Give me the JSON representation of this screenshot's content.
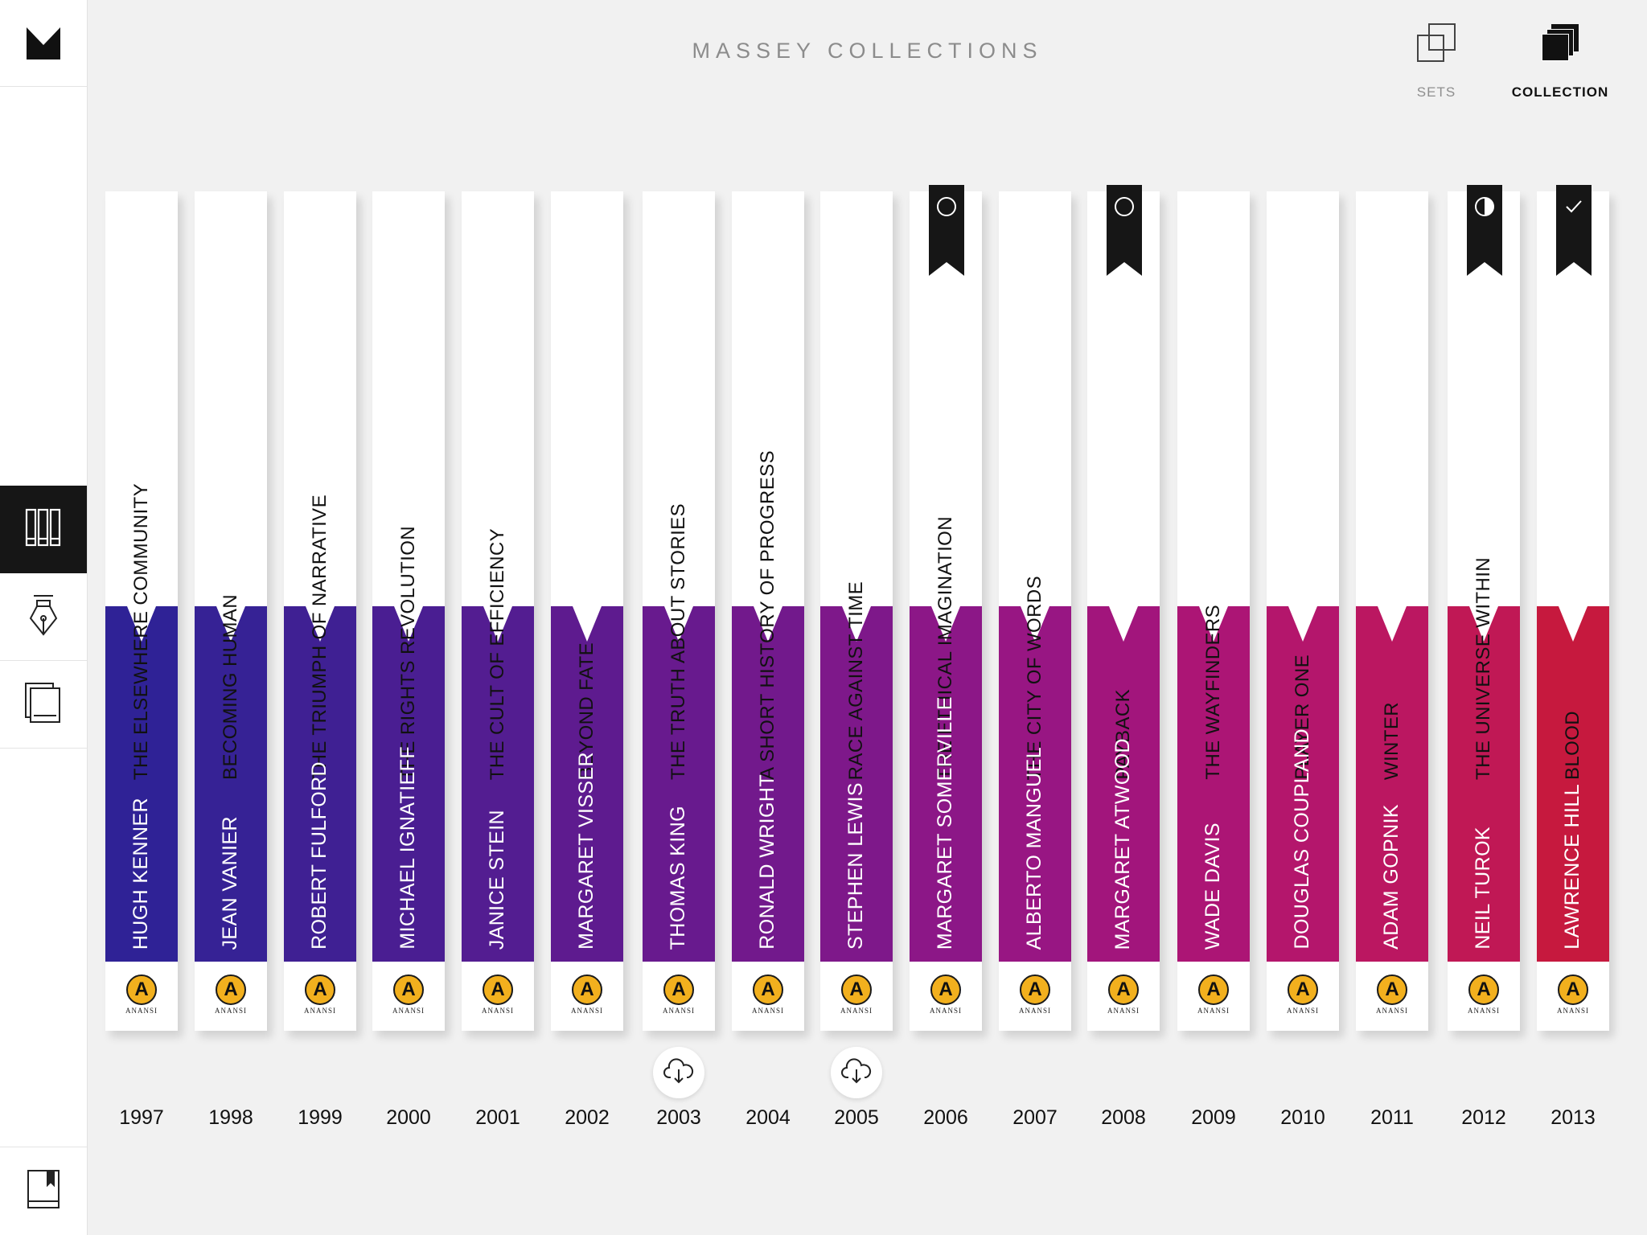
{
  "header": {
    "title": "MASSEY COLLECTIONS"
  },
  "topnav": [
    {
      "label": "SETS",
      "icon": "sets-icon",
      "active": false
    },
    {
      "label": "COLLECTION",
      "icon": "collection-icon",
      "active": true
    }
  ],
  "sidebar": {
    "logo": "massey-logo",
    "items": [
      {
        "icon": "library-icon",
        "active": true
      },
      {
        "icon": "pen-nib-icon",
        "active": false
      },
      {
        "icon": "cards-icon",
        "active": false
      }
    ],
    "bottom": "bookmark-book-icon"
  },
  "publisher": {
    "letter": "A",
    "name": "ANANSI",
    "color": "#f2b01e"
  },
  "books": [
    {
      "title": "THE ELSEWHERE COMMUNITY",
      "author": "HUGH KENNER",
      "year": "1997",
      "color": "#2f2296",
      "ribbon": null,
      "download": false
    },
    {
      "title": "BECOMING HUMAN",
      "author": "JEAN VANIER",
      "year": "1998",
      "color": "#362295",
      "ribbon": null,
      "download": false
    },
    {
      "title": "THE TRIUMPH OF NARRATIVE",
      "author": "ROBERT FULFORD",
      "year": "1999",
      "color": "#3f2093",
      "ribbon": null,
      "download": false
    },
    {
      "title": "THE RIGHTS REVOLUTION",
      "author": "MICHAEL IGNATIEFF",
      "year": "2000",
      "color": "#4a1e92",
      "ribbon": null,
      "download": false
    },
    {
      "title": "THE CULT OF EFFICIENCY",
      "author": "JANICE STEIN",
      "year": "2001",
      "color": "#531d91",
      "ribbon": null,
      "download": false
    },
    {
      "title": "BEYOND FATE",
      "author": "MARGARET VISSER",
      "year": "2002",
      "color": "#5e1b8f",
      "ribbon": null,
      "download": false
    },
    {
      "title": "THE TRUTH ABOUT STORIES",
      "author": "THOMAS KING",
      "year": "2003",
      "color": "#681a8e",
      "ribbon": null,
      "download": true
    },
    {
      "title": "A SHORT HISTORY OF PROGRESS",
      "author": "RONALD WRIGHT",
      "year": "2004",
      "color": "#72198c",
      "ribbon": null,
      "download": false
    },
    {
      "title": "RACE AGAINST TIME",
      "author": "STEPHEN LEWIS",
      "year": "2005",
      "color": "#7e188a",
      "ribbon": null,
      "download": true
    },
    {
      "title": "THE ETHICAL IMAGINATION",
      "author": "MARGARET SOMERVILLE",
      "year": "2006",
      "color": "#8c1787",
      "ribbon": "empty-circle-icon",
      "download": false
    },
    {
      "title": "THE CITY OF WORDS",
      "author": "ALBERTO MANGUEL",
      "year": "2007",
      "color": "#981683",
      "ribbon": null,
      "download": false
    },
    {
      "title": "PAYBACK",
      "author": "MARGARET ATWOOD",
      "year": "2008",
      "color": "#a2157c",
      "ribbon": "empty-circle-icon",
      "download": false
    },
    {
      "title": "THE WAYFINDERS",
      "author": "WADE DAVIS",
      "year": "2009",
      "color": "#ac1575",
      "ribbon": null,
      "download": false
    },
    {
      "title": "PLAYER ONE",
      "author": "DOUGLAS COUPLAND",
      "year": "2010",
      "color": "#b4166c",
      "ribbon": null,
      "download": false
    },
    {
      "title": "WINTER",
      "author": "ADAM GOPNIK",
      "year": "2011",
      "color": "#bb1761",
      "ribbon": null,
      "download": false
    },
    {
      "title": "THE UNIVERSE WITHIN",
      "author": "NEIL TUROK",
      "year": "2012",
      "color": "#c01855",
      "ribbon": "half-circle-icon",
      "download": false
    },
    {
      "title": "BLOOD",
      "author": "LAWRENCE HILL",
      "year": "2013",
      "color": "#c6193e",
      "ribbon": "checkmark-icon",
      "download": false
    }
  ]
}
